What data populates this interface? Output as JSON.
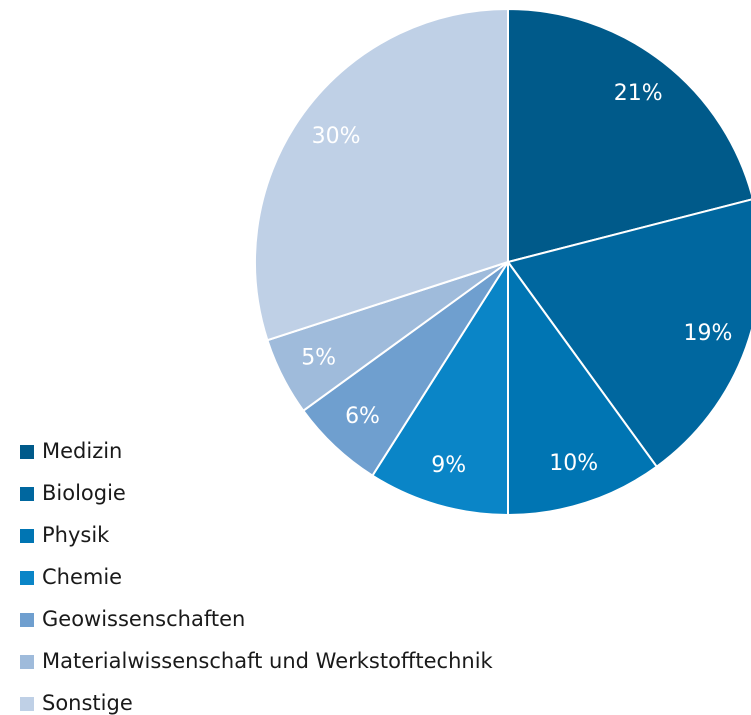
{
  "chart_data": {
    "type": "pie",
    "categories": [
      "Medizin",
      "Biologie",
      "Physik",
      "Chemie",
      "Geowissenschaften",
      "Materialwissenschaft und Werkstofftechnik",
      "Sonstige"
    ],
    "values": [
      21,
      19,
      10,
      9,
      6,
      5,
      30
    ],
    "value_labels": [
      "21%",
      "19%",
      "10%",
      "9%",
      "6%",
      "5%",
      "30%"
    ],
    "colors": [
      "#005a8a",
      "#00679f",
      "#0075b3",
      "#0a85c7",
      "#6f9fcf",
      "#9fbbdb",
      "#bfd0e6"
    ]
  }
}
